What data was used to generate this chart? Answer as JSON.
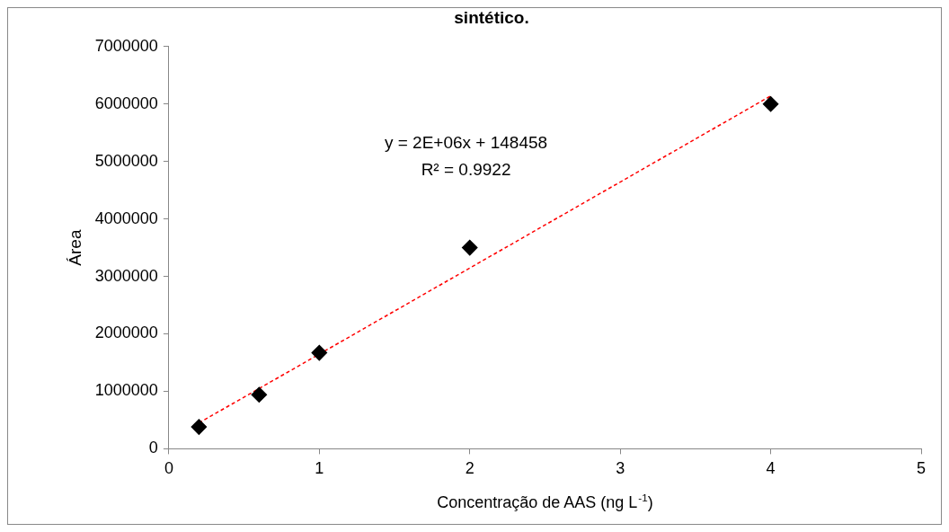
{
  "chart_data": {
    "type": "scatter",
    "title": "sintético.",
    "xlabel": "Concentração de AAS (ng L$^{-1}$)",
    "ylabel": "Área",
    "xlim": [
      0,
      5
    ],
    "xticks": [
      0,
      1,
      2,
      3,
      4,
      5
    ],
    "ylim": [
      0,
      7000000
    ],
    "yticks": [
      0,
      1000000,
      2000000,
      3000000,
      4000000,
      5000000,
      6000000,
      7000000
    ],
    "grid": false,
    "legend": false,
    "series": [
      {
        "type": "scatter",
        "color": "#000000",
        "marker": "diamond",
        "x": [
          0.2,
          0.6,
          1,
          2,
          4
        ],
        "values": [
          380000,
          940000,
          1670000,
          3500000,
          6000000
        ]
      },
      {
        "type": "line",
        "color": "#ff0000",
        "marker": "none",
        "line_style": "dashed",
        "x": [
          0.2,
          4
        ],
        "values": [
          450000,
          6140000
        ]
      }
    ],
    "annotations": [
      "y = 2E+06x + 148458",
      "R² = 0.9922"
    ]
  }
}
